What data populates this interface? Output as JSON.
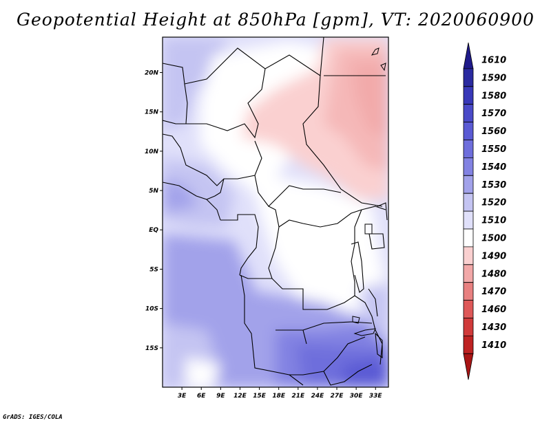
{
  "title": "Geopotential Height at 850hPa [gpm], VT: 2020060900",
  "credit": "GrADS: IGES/COLA",
  "map": {
    "lat_labels": [
      "20N",
      "15N",
      "10N",
      "5N",
      "EQ",
      "5S",
      "10S",
      "15S"
    ],
    "lon_labels": [
      "3E",
      "6E",
      "9E",
      "12E",
      "15E",
      "18E",
      "21E",
      "24E",
      "27E",
      "30E",
      "33E"
    ],
    "lon_range": [
      0,
      35
    ],
    "lat_range": [
      -20,
      24.5
    ]
  },
  "colorbar": {
    "labels": [
      "1610",
      "1590",
      "1580",
      "1570",
      "1560",
      "1550",
      "1540",
      "1530",
      "1520",
      "1510",
      "1500",
      "1490",
      "1480",
      "1470",
      "1460",
      "1430",
      "1410"
    ],
    "colors": [
      "#1f1a8a",
      "#2a2aa0",
      "#3838b8",
      "#4a4ac8",
      "#5a5ad4",
      "#6e6edc",
      "#8282e2",
      "#a2a2ea",
      "#c4c4f2",
      "#e0e0fa",
      "#ffffff",
      "#fad0d0",
      "#f2a8a8",
      "#e88080",
      "#de5858",
      "#d03a3a",
      "#be2222",
      "#a81414"
    ]
  }
}
